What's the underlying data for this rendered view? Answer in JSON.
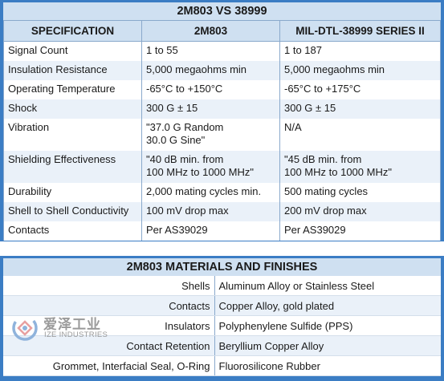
{
  "spec_table": {
    "title": "2M803 VS 38999",
    "headers": [
      "SPECIFICATION",
      "2M803",
      "MIL-DTL-38999 SERIES II"
    ],
    "rows": [
      {
        "spec": "Signal Count",
        "m2803": "1 to 55",
        "mil": "1 to 187"
      },
      {
        "spec": "Insulation Resistance",
        "m2803": "5,000 megaohms min",
        "mil": "5,000 megaohms min"
      },
      {
        "spec": "Operating Temperature",
        "m2803": "-65°C to +150°C",
        "mil": "-65°C to +175°C"
      },
      {
        "spec": "Shock",
        "m2803": "300 G ± 15",
        "mil": "300 G ± 15"
      },
      {
        "spec": "Vibration",
        "m2803": "\"37.0 G Random\n30.0 G Sine\"",
        "mil": "N/A"
      },
      {
        "spec": "Shielding Effectiveness",
        "m2803": "\"40 dB min. from\n100 MHz to 1000 MHz\"",
        "mil": "\"45 dB min. from\n100 MHz to 1000 MHz\""
      },
      {
        "spec": "Durability",
        "m2803": "2,000 mating cycles min.",
        "mil": "500 mating cycles"
      },
      {
        "spec": "Shell to Shell Conductivity",
        "m2803": "100 mV drop max",
        "mil": "200 mV drop max"
      },
      {
        "spec": "Contacts",
        "m2803": "Per AS39029",
        "mil": "Per AS39029"
      }
    ]
  },
  "materials": {
    "title": "2M803 MATERIALS AND FINISHES",
    "rows": [
      {
        "label": "Shells",
        "value": "Aluminum Alloy or Stainless Steel"
      },
      {
        "label": "Contacts",
        "value": "Copper Alloy, gold plated"
      },
      {
        "label": "Insulators",
        "value": "Polyphenylene Sulfide (PPS)"
      },
      {
        "label": "Contact Retention",
        "value": "Beryllium Copper Alloy"
      },
      {
        "label": "Grommet, Interfacial Seal, O-Ring",
        "value": "Fluorosilicone Rubber"
      }
    ]
  },
  "watermark": {
    "cn_text": "爱泽工业",
    "en_text": "IZE INDUSTRIES",
    "icon": "ize-logo-icon"
  },
  "colors": {
    "frame_blue": "#3b7dc4",
    "header_light_blue": "#cfe0f1",
    "row_alt": "#eaf1f9"
  }
}
